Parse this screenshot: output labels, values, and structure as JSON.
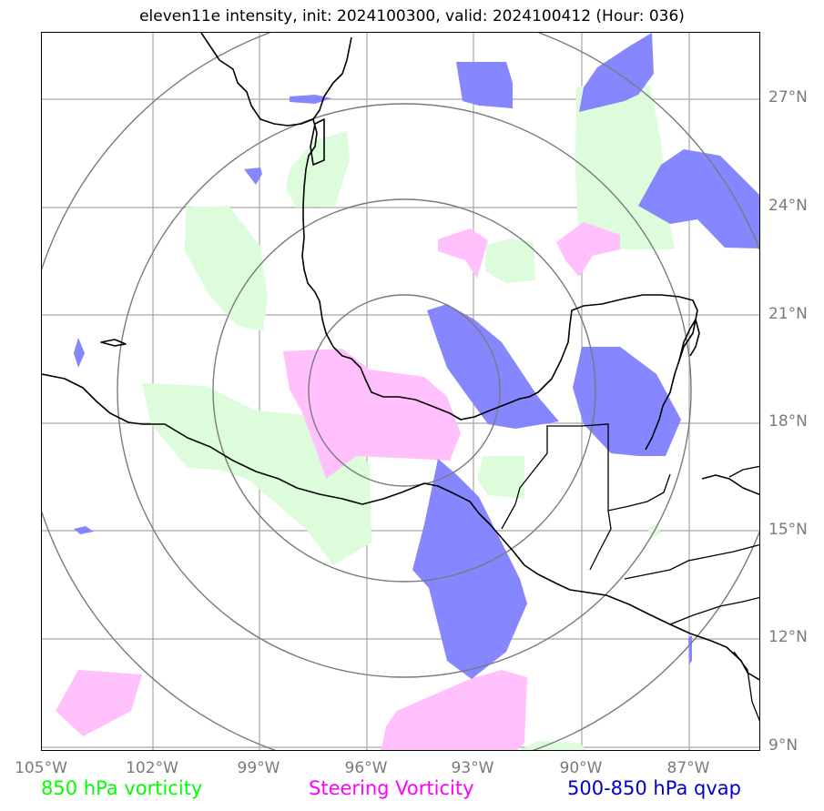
{
  "title": "eleven11e intensity, init: 2024100300, valid: 2024100412 (Hour: 036)",
  "lat_labels": [
    "27°N",
    "24°N",
    "21°N",
    "18°N",
    "15°N",
    "12°N",
    "9°N"
  ],
  "lon_labels": [
    "105°W",
    "102°W",
    "99°W",
    "96°W",
    "93°W",
    "90°W",
    "87°W"
  ],
  "legend": {
    "vorticity_850": "850 hPa vorticity",
    "steering": "Steering Vorticity",
    "qvap": "500-850 hPa qvap"
  },
  "colors": {
    "vorticity_850": "#00ff00",
    "steering": "#ff00ff",
    "qvap": "#0000cc",
    "green_fill": "#dcfcdc",
    "magenta_fill": "#ffc0fc",
    "blue_fill": "#8080ff"
  },
  "map": {
    "lat_range": [
      8.9,
      28.7
    ],
    "lon_range": [
      -105,
      -85.2
    ],
    "center": {
      "lat": 18.5,
      "lon": -94.2
    },
    "range_rings": 4
  }
}
